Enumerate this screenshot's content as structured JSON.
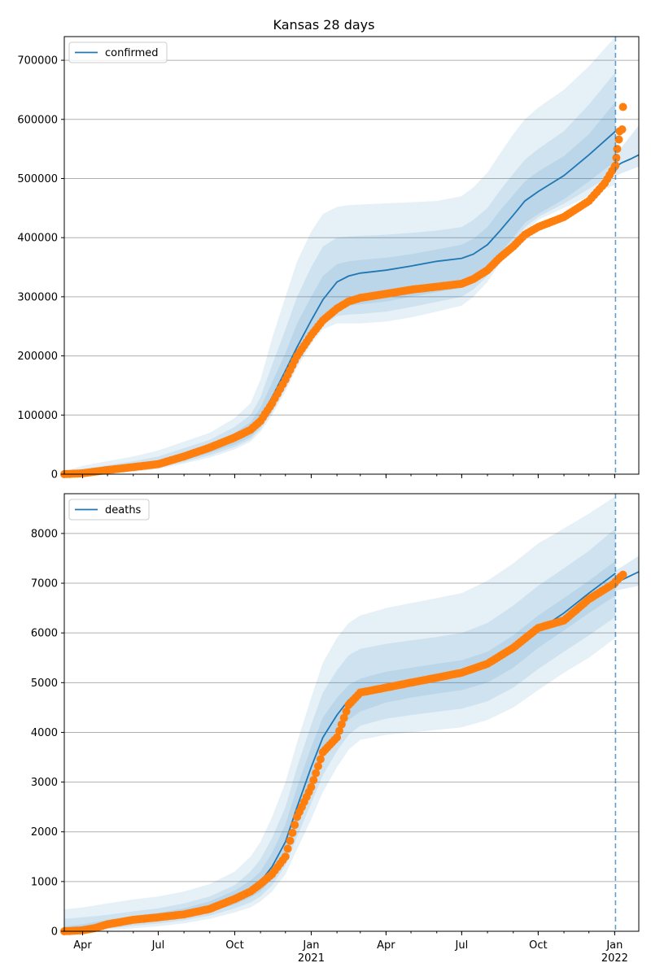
{
  "title": "Kansas 28 days",
  "colors": {
    "model": "#1f77b4",
    "observed": "#ff7f0e",
    "band": "#1f77b4",
    "grid": "#b0b0b0",
    "forecast_line": "#1f77b4"
  },
  "x_axis": {
    "tick_labels": [
      {
        "date": "2020-04-01",
        "label": "Apr",
        "sublabel": ""
      },
      {
        "date": "2020-07-01",
        "label": "Jul",
        "sublabel": ""
      },
      {
        "date": "2020-10-01",
        "label": "Oct",
        "sublabel": ""
      },
      {
        "date": "2021-01-01",
        "label": "Jan",
        "sublabel": "2021"
      },
      {
        "date": "2021-04-01",
        "label": "Apr",
        "sublabel": ""
      },
      {
        "date": "2021-07-01",
        "label": "Jul",
        "sublabel": ""
      },
      {
        "date": "2021-10-01",
        "label": "Oct",
        "sublabel": ""
      },
      {
        "date": "2022-01-01",
        "label": "Jan",
        "sublabel": "2022"
      }
    ],
    "range": [
      "2020-03-10",
      "2022-01-30"
    ],
    "forecast_start": "2022-01-02"
  },
  "chart_data": [
    {
      "type": "line",
      "panel": "confirmed",
      "legend": "confirmed",
      "legend_position": "upper-left",
      "grid": "horizontal",
      "ylim": [
        0,
        740000
      ],
      "yticks": [
        0,
        100000,
        200000,
        300000,
        400000,
        500000,
        600000,
        700000
      ],
      "ytick_labels": [
        "0",
        "100000",
        "200000",
        "300000",
        "400000",
        "500000",
        "600000",
        "700000"
      ],
      "model": {
        "dates": [
          "2020-03-10",
          "2020-04-01",
          "2020-05-01",
          "2020-06-01",
          "2020-07-01",
          "2020-08-01",
          "2020-09-01",
          "2020-10-01",
          "2020-10-20",
          "2020-11-01",
          "2020-11-15",
          "2020-12-01",
          "2020-12-15",
          "2021-01-01",
          "2021-01-15",
          "2021-02-01",
          "2021-02-15",
          "2021-03-01",
          "2021-04-01",
          "2021-05-01",
          "2021-06-01",
          "2021-07-01",
          "2021-07-15",
          "2021-08-01",
          "2021-08-15",
          "2021-09-01",
          "2021-09-15",
          "2021-10-01",
          "2021-11-01",
          "2021-12-01",
          "2022-01-02"
        ],
        "values": [
          0,
          2000,
          7000,
          12000,
          18000,
          30000,
          45000,
          62000,
          78000,
          95000,
          130000,
          175000,
          215000,
          260000,
          295000,
          325000,
          335000,
          340000,
          345000,
          352000,
          360000,
          365000,
          372000,
          388000,
          410000,
          438000,
          462000,
          478000,
          505000,
          540000,
          580000
        ]
      },
      "forecast": {
        "dates": [
          "2022-01-02",
          "2022-01-10",
          "2022-01-20",
          "2022-01-30"
        ],
        "values": [
          520000,
          527000,
          533000,
          540000
        ]
      },
      "bands": [
        {
          "name": "outer",
          "upper": [
            5000,
            14000,
            22000,
            30000,
            40000,
            55000,
            70000,
            95000,
            120000,
            160000,
            230000,
            300000,
            360000,
            410000,
            440000,
            452000,
            455000,
            456000,
            458000,
            460000,
            462000,
            470000,
            485000,
            510000,
            540000,
            575000,
            600000,
            620000,
            650000,
            690000,
            740000
          ],
          "lower": [
            0,
            0,
            1000,
            4000,
            9000,
            18000,
            28000,
            42000,
            55000,
            72000,
            100000,
            140000,
            180000,
            220000,
            245000,
            255000,
            255000,
            255000,
            258000,
            265000,
            275000,
            285000,
            300000,
            325000,
            355000,
            385000,
            410000,
            430000,
            450000,
            470000,
            490000
          ]
        },
        {
          "name": "middle",
          "upper": [
            3000,
            9000,
            15000,
            22000,
            30000,
            44000,
            58000,
            80000,
            100000,
            130000,
            185000,
            245000,
            300000,
            350000,
            385000,
            400000,
            402000,
            403000,
            405000,
            408000,
            412000,
            418000,
            430000,
            450000,
            478000,
            508000,
            532000,
            550000,
            580000,
            625000,
            680000
          ]
        },
        {
          "name": "inner",
          "upper": [
            1500,
            5000,
            10000,
            16000,
            23000,
            36000,
            51000,
            70000,
            88000,
            112000,
            155000,
            205000,
            255000,
            300000,
            335000,
            355000,
            360000,
            362000,
            366000,
            372000,
            380000,
            388000,
            398000,
            418000,
            444000,
            472000,
            495000,
            512000,
            538000,
            575000,
            630000
          ],
          "lower": [
            0,
            0,
            3000,
            8000,
            13000,
            23000,
            36000,
            50000,
            63000,
            80000,
            110000,
            150000,
            190000,
            230000,
            260000,
            280000,
            285000,
            287000,
            292000,
            300000,
            308000,
            315000,
            325000,
            345000,
            372000,
            400000,
            425000,
            440000,
            465000,
            495000,
            530000
          ]
        }
      ],
      "forecast_bands": {
        "dates": [
          "2022-01-02",
          "2022-01-30"
        ],
        "upper": [
          540000,
          590000
        ],
        "lower": [
          505000,
          520000
        ]
      },
      "observed": {
        "dates": [
          "2020-03-10",
          "2020-04-01",
          "2020-05-01",
          "2020-06-01",
          "2020-07-01",
          "2020-08-01",
          "2020-09-01",
          "2020-10-01",
          "2020-10-20",
          "2020-11-01",
          "2020-11-15",
          "2020-12-01",
          "2020-12-15",
          "2021-01-01",
          "2021-01-15",
          "2021-02-01",
          "2021-02-15",
          "2021-03-01",
          "2021-04-01",
          "2021-05-01",
          "2021-06-01",
          "2021-07-01",
          "2021-07-15",
          "2021-08-01",
          "2021-08-15",
          "2021-09-01",
          "2021-09-15",
          "2021-10-01",
          "2021-11-01",
          "2021-12-01",
          "2021-12-20",
          "2022-01-01"
        ],
        "values": [
          0,
          1500,
          7000,
          12000,
          17000,
          30000,
          45000,
          62000,
          75000,
          90000,
          120000,
          160000,
          200000,
          235000,
          260000,
          280000,
          292000,
          298000,
          305000,
          312000,
          317000,
          322000,
          330000,
          345000,
          365000,
          385000,
          405000,
          418000,
          435000,
          462000,
          492000,
          520000
        ]
      },
      "observed_recent": {
        "dates": [
          "2022-01-02",
          "2022-01-03",
          "2022-01-04",
          "2022-01-06",
          "2022-01-07",
          "2022-01-10",
          "2022-01-11"
        ],
        "values": [
          522000,
          535000,
          550000,
          566000,
          580000,
          583000,
          621000
        ]
      }
    },
    {
      "type": "line",
      "panel": "deaths",
      "legend": "deaths",
      "legend_position": "upper-left",
      "grid": "horizontal",
      "ylim": [
        0,
        8800
      ],
      "yticks": [
        0,
        1000,
        2000,
        3000,
        4000,
        5000,
        6000,
        7000,
        8000
      ],
      "ytick_labels": [
        "0",
        "1000",
        "2000",
        "3000",
        "4000",
        "5000",
        "6000",
        "7000",
        "8000"
      ],
      "model": {
        "dates": [
          "2020-03-10",
          "2020-04-01",
          "2020-05-01",
          "2020-06-01",
          "2020-07-01",
          "2020-08-01",
          "2020-09-01",
          "2020-10-01",
          "2020-10-20",
          "2020-11-01",
          "2020-11-15",
          "2020-12-01",
          "2020-12-15",
          "2021-01-01",
          "2021-01-15",
          "2021-02-01",
          "2021-02-15",
          "2021-03-01",
          "2021-04-01",
          "2021-05-01",
          "2021-06-01",
          "2021-07-01",
          "2021-08-01",
          "2021-09-01",
          "2021-10-01",
          "2021-11-01",
          "2021-12-01",
          "2022-01-02"
        ],
        "values": [
          0,
          30,
          150,
          230,
          280,
          360,
          480,
          680,
          850,
          1000,
          1300,
          1800,
          2500,
          3300,
          3900,
          4350,
          4650,
          4800,
          4950,
          5050,
          5130,
          5200,
          5350,
          5650,
          6050,
          6400,
          6800,
          7200
        ]
      },
      "forecast": {
        "dates": [
          "2022-01-02",
          "2022-01-15",
          "2022-01-30"
        ],
        "values": [
          7000,
          7110,
          7230
        ]
      },
      "bands": [
        {
          "name": "outer",
          "upper": [
            440,
            480,
            560,
            640,
            700,
            800,
            950,
            1200,
            1500,
            1800,
            2300,
            3000,
            3800,
            4700,
            5400,
            5900,
            6200,
            6350,
            6500,
            6600,
            6700,
            6800,
            7050,
            7400,
            7800,
            8100,
            8400,
            8750
          ],
          "lower": [
            0,
            0,
            20,
            60,
            100,
            160,
            250,
            380,
            480,
            600,
            800,
            1150,
            1650,
            2250,
            2800,
            3300,
            3650,
            3850,
            3950,
            4000,
            4050,
            4100,
            4250,
            4500,
            4850,
            5200,
            5500,
            5900
          ]
        },
        {
          "name": "middle",
          "upper": [
            250,
            280,
            330,
            400,
            460,
            560,
            700,
            930,
            1200,
            1450,
            1880,
            2500,
            3300,
            4150,
            4800,
            5250,
            5550,
            5680,
            5780,
            5850,
            5920,
            6000,
            6200,
            6550,
            6950,
            7300,
            7650,
            8100
          ]
        },
        {
          "name": "inner",
          "upper": [
            100,
            140,
            230,
            310,
            370,
            460,
            600,
            820,
            1020,
            1200,
            1580,
            2150,
            2900,
            3700,
            4300,
            4700,
            4950,
            5080,
            5220,
            5300,
            5380,
            5450,
            5620,
            5950,
            6350,
            6700,
            7050,
            7450
          ],
          "lower": [
            0,
            0,
            80,
            160,
            210,
            280,
            380,
            540,
            680,
            800,
            1050,
            1500,
            2150,
            2900,
            3480,
            3950,
            4250,
            4420,
            4600,
            4700,
            4780,
            4850,
            5000,
            5300,
            5700,
            6050,
            6400,
            6750
          ]
        }
      ],
      "forecast_bands": {
        "dates": [
          "2022-01-02",
          "2022-01-30"
        ],
        "upper": [
          7250,
          7550
        ],
        "lower": [
          6850,
          6950
        ]
      },
      "observed": {
        "dates": [
          "2020-03-10",
          "2020-04-01",
          "2020-04-15",
          "2020-05-01",
          "2020-06-01",
          "2020-07-01",
          "2020-08-01",
          "2020-09-01",
          "2020-10-01",
          "2020-10-20",
          "2020-11-01",
          "2020-11-15",
          "2020-12-01",
          "2020-12-15",
          "2021-01-01",
          "2021-01-15",
          "2021-02-01",
          "2021-02-15",
          "2021-03-01",
          "2021-04-01",
          "2021-05-01",
          "2021-06-01",
          "2021-07-01",
          "2021-08-01",
          "2021-09-01",
          "2021-10-01",
          "2021-11-01",
          "2021-12-01",
          "2022-01-01"
        ],
        "values": [
          0,
          20,
          60,
          140,
          230,
          280,
          340,
          450,
          650,
          800,
          950,
          1150,
          1500,
          2300,
          2900,
          3600,
          3900,
          4550,
          4800,
          4900,
          5000,
          5100,
          5200,
          5380,
          5700,
          6100,
          6250,
          6680,
          7000
        ]
      },
      "observed_recent": {
        "dates": [
          "2022-01-02",
          "2022-01-05",
          "2022-01-08",
          "2022-01-11"
        ],
        "values": [
          7030,
          7080,
          7130,
          7170
        ]
      }
    }
  ]
}
